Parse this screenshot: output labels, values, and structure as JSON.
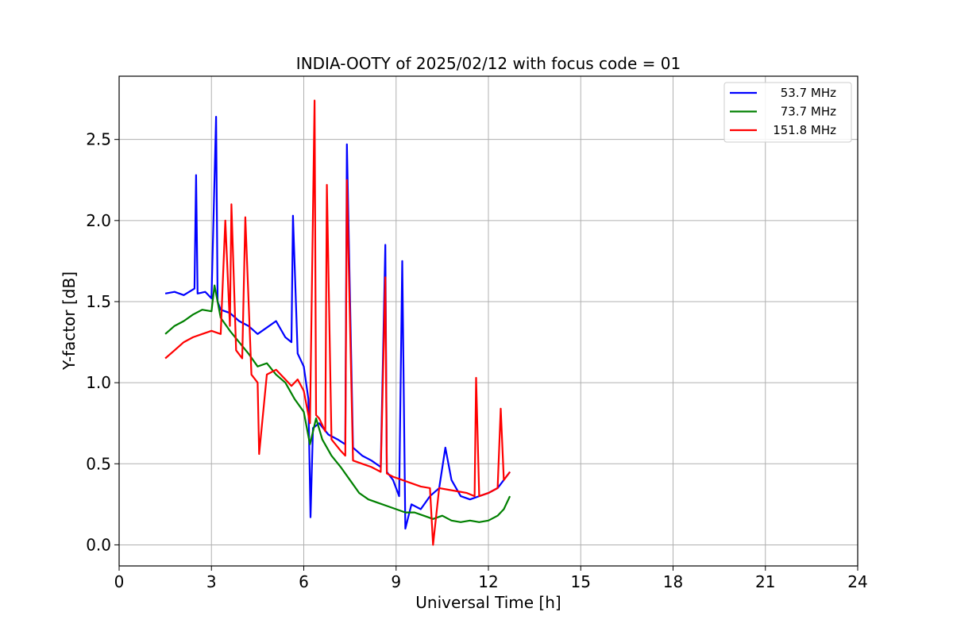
{
  "chart_data": {
    "type": "line",
    "title": "INDIA-OOTY of 2025/02/12 with focus code = 01",
    "xlabel": "Universal Time [h]",
    "ylabel": "Y-factor [dB]",
    "xlim": [
      0,
      24
    ],
    "ylim": [
      -0.13,
      2.89
    ],
    "xticks": [
      0,
      3,
      6,
      9,
      12,
      15,
      18,
      21,
      24
    ],
    "yticks": [
      0.0,
      0.5,
      1.0,
      1.5,
      2.0,
      2.5
    ],
    "ytick_labels": [
      "0.0",
      "0.5",
      "1.0",
      "1.5",
      "2.0",
      "2.5"
    ],
    "grid": true,
    "legend_position": "top-right",
    "series": [
      {
        "name": "53.7 MHz",
        "color": "#0000ff",
        "x": [
          1.5,
          1.8,
          2.1,
          2.45,
          2.5,
          2.55,
          2.8,
          3.0,
          3.15,
          3.2,
          3.3,
          3.6,
          3.9,
          4.2,
          4.5,
          4.8,
          5.1,
          5.4,
          5.6,
          5.65,
          5.8,
          6.0,
          6.15,
          6.22,
          6.3,
          6.5,
          6.8,
          7.1,
          7.35,
          7.4,
          7.6,
          7.9,
          8.2,
          8.5,
          8.65,
          8.7,
          8.9,
          9.1,
          9.2,
          9.3,
          9.5,
          9.8,
          10.1,
          10.4,
          10.6,
          10.8,
          11.1,
          11.4,
          11.7,
          12.0,
          12.3,
          12.5,
          12.7
        ],
        "y": [
          1.55,
          1.56,
          1.54,
          1.58,
          2.28,
          1.55,
          1.56,
          1.52,
          2.64,
          1.5,
          1.45,
          1.43,
          1.38,
          1.35,
          1.3,
          1.34,
          1.38,
          1.28,
          1.25,
          2.03,
          1.18,
          1.1,
          0.9,
          0.17,
          0.72,
          0.75,
          0.68,
          0.65,
          0.62,
          2.47,
          0.6,
          0.55,
          0.52,
          0.48,
          1.85,
          0.45,
          0.4,
          0.3,
          1.75,
          0.1,
          0.25,
          0.22,
          0.3,
          0.35,
          0.6,
          0.4,
          0.3,
          0.28,
          0.3,
          0.32,
          0.35,
          0.4,
          0.45
        ]
      },
      {
        "name": "73.7 MHz",
        "color": "#008000",
        "x": [
          1.5,
          1.8,
          2.1,
          2.4,
          2.7,
          3.0,
          3.1,
          3.3,
          3.6,
          3.9,
          4.2,
          4.5,
          4.8,
          5.1,
          5.4,
          5.7,
          6.0,
          6.2,
          6.4,
          6.6,
          6.9,
          7.2,
          7.5,
          7.8,
          8.1,
          8.4,
          8.7,
          9.0,
          9.3,
          9.6,
          9.9,
          10.2,
          10.5,
          10.8,
          11.1,
          11.4,
          11.7,
          12.0,
          12.3,
          12.5,
          12.7
        ],
        "y": [
          1.3,
          1.35,
          1.38,
          1.42,
          1.45,
          1.44,
          1.6,
          1.4,
          1.32,
          1.25,
          1.18,
          1.1,
          1.12,
          1.05,
          1.0,
          0.9,
          0.82,
          0.62,
          0.78,
          0.65,
          0.55,
          0.48,
          0.4,
          0.32,
          0.28,
          0.26,
          0.24,
          0.22,
          0.2,
          0.2,
          0.18,
          0.16,
          0.18,
          0.15,
          0.14,
          0.15,
          0.14,
          0.15,
          0.18,
          0.22,
          0.3
        ]
      },
      {
        "name": "151.8 MHz",
        "color": "#ff0000",
        "x": [
          1.5,
          1.8,
          2.1,
          2.4,
          2.7,
          3.0,
          3.3,
          3.45,
          3.6,
          3.65,
          3.8,
          4.0,
          4.1,
          4.3,
          4.5,
          4.55,
          4.8,
          5.1,
          5.4,
          5.6,
          5.8,
          6.0,
          6.2,
          6.35,
          6.4,
          6.5,
          6.7,
          6.75,
          6.9,
          7.2,
          7.35,
          7.4,
          7.6,
          7.9,
          8.2,
          8.5,
          8.65,
          8.7,
          8.9,
          9.2,
          9.5,
          9.8,
          10.1,
          10.2,
          10.4,
          10.7,
          11.0,
          11.3,
          11.55,
          11.6,
          11.7,
          12.0,
          12.3,
          12.4,
          12.5,
          12.7
        ],
        "y": [
          1.15,
          1.2,
          1.25,
          1.28,
          1.3,
          1.32,
          1.3,
          2.0,
          1.35,
          2.1,
          1.2,
          1.15,
          2.02,
          1.05,
          1.0,
          0.56,
          1.05,
          1.08,
          1.02,
          0.98,
          1.02,
          0.95,
          0.75,
          2.74,
          0.8,
          0.78,
          0.7,
          2.22,
          0.65,
          0.58,
          0.55,
          2.25,
          0.52,
          0.5,
          0.48,
          0.45,
          1.65,
          0.44,
          0.42,
          0.4,
          0.38,
          0.36,
          0.35,
          0.0,
          0.35,
          0.34,
          0.33,
          0.32,
          0.3,
          1.03,
          0.3,
          0.32,
          0.35,
          0.84,
          0.4,
          0.45
        ]
      }
    ]
  }
}
